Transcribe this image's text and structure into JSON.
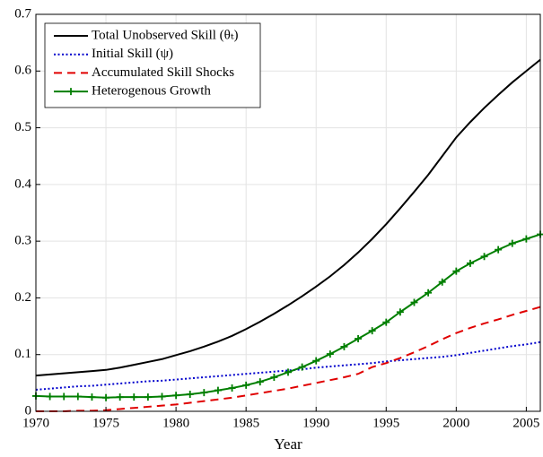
{
  "chart_data": {
    "type": "line",
    "x_label": "Year",
    "x": [
      1970,
      1971,
      1972,
      1973,
      1974,
      1975,
      1976,
      1977,
      1978,
      1979,
      1980,
      1981,
      1982,
      1983,
      1984,
      1985,
      1986,
      1987,
      1988,
      1989,
      1990,
      1991,
      1992,
      1993,
      1994,
      1995,
      1996,
      1997,
      1998,
      1999,
      2000,
      2001,
      2002,
      2003,
      2004,
      2005,
      2006
    ],
    "xlim": [
      1970,
      2006
    ],
    "xticks": [
      1970,
      1975,
      1980,
      1985,
      1990,
      1995,
      2000,
      2005
    ],
    "ylim": [
      0,
      0.7
    ],
    "yticks": [
      0,
      0.1,
      0.2,
      0.3,
      0.4,
      0.5,
      0.6,
      0.7
    ],
    "grid": true,
    "legend": "upper left",
    "series": [
      {
        "name": "Total Unobserved Skill (θₜ)",
        "color": "#000000",
        "style": "solid",
        "marker": null,
        "values": [
          0.063,
          0.065,
          0.067,
          0.069,
          0.071,
          0.073,
          0.077,
          0.082,
          0.087,
          0.092,
          0.099,
          0.106,
          0.114,
          0.123,
          0.133,
          0.145,
          0.158,
          0.172,
          0.187,
          0.203,
          0.22,
          0.238,
          0.258,
          0.28,
          0.304,
          0.33,
          0.358,
          0.387,
          0.417,
          0.45,
          0.483,
          0.51,
          0.535,
          0.558,
          0.58,
          0.6,
          0.62
        ]
      },
      {
        "name": "Initial Skill (ψ)",
        "color": "#0000cc",
        "style": "dotted",
        "marker": null,
        "values": [
          0.038,
          0.04,
          0.042,
          0.044,
          0.045,
          0.047,
          0.049,
          0.051,
          0.053,
          0.054,
          0.056,
          0.058,
          0.06,
          0.062,
          0.064,
          0.066,
          0.068,
          0.07,
          0.072,
          0.074,
          0.077,
          0.079,
          0.081,
          0.083,
          0.085,
          0.088,
          0.09,
          0.092,
          0.094,
          0.096,
          0.099,
          0.103,
          0.107,
          0.111,
          0.115,
          0.118,
          0.122
        ]
      },
      {
        "name": "Accumulated Skill Shocks",
        "color": "#e00000",
        "style": "dashed",
        "marker": null,
        "values": [
          0,
          0,
          0,
          0.001,
          0.001,
          0.002,
          0.004,
          0.006,
          0.008,
          0.01,
          0.012,
          0.015,
          0.018,
          0.021,
          0.024,
          0.028,
          0.032,
          0.036,
          0.04,
          0.045,
          0.05,
          0.055,
          0.06,
          0.066,
          0.078,
          0.085,
          0.094,
          0.104,
          0.115,
          0.127,
          0.138,
          0.147,
          0.155,
          0.162,
          0.17,
          0.177,
          0.184
        ]
      },
      {
        "name": "Heterogenous Growth",
        "color": "#007f00",
        "style": "solid",
        "marker": "plus",
        "values": [
          0.027,
          0.026,
          0.026,
          0.026,
          0.025,
          0.024,
          0.025,
          0.025,
          0.025,
          0.026,
          0.028,
          0.03,
          0.033,
          0.037,
          0.041,
          0.046,
          0.052,
          0.06,
          0.069,
          0.078,
          0.089,
          0.101,
          0.114,
          0.128,
          0.142,
          0.157,
          0.175,
          0.192,
          0.209,
          0.228,
          0.247,
          0.261,
          0.273,
          0.285,
          0.296,
          0.304,
          0.312
        ]
      }
    ]
  }
}
